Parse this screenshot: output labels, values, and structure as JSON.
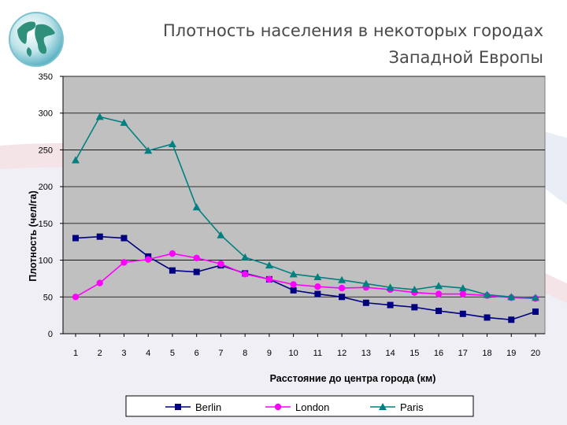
{
  "slide": {
    "title_line1": "Плотность населения в некоторых городах",
    "title_line2": "Западной Европы"
  },
  "chart_data": {
    "type": "line",
    "title": "",
    "xlabel": "Расстояние до центра города (км)",
    "ylabel": "Плотность (чел/га)",
    "x": [
      1,
      2,
      3,
      4,
      5,
      6,
      7,
      8,
      9,
      10,
      11,
      12,
      13,
      14,
      15,
      16,
      17,
      18,
      19,
      20
    ],
    "ylim": [
      0,
      350
    ],
    "yticks": [
      0,
      50,
      100,
      150,
      200,
      250,
      300,
      350
    ],
    "grid": true,
    "legend_position": "bottom",
    "plot_background": "#c0c0c0",
    "series": [
      {
        "name": "Berlin",
        "color": "#000080",
        "marker": "square",
        "values": [
          130,
          132,
          130,
          105,
          86,
          84,
          93,
          82,
          74,
          59,
          54,
          50,
          42,
          39,
          36,
          31,
          27,
          22,
          19,
          30
        ]
      },
      {
        "name": "London",
        "color": "#ff00ff",
        "marker": "circle",
        "values": [
          50,
          69,
          97,
          101,
          109,
          103,
          95,
          81,
          74,
          67,
          64,
          62,
          63,
          60,
          56,
          54,
          54,
          52,
          49,
          48
        ]
      },
      {
        "name": "Paris",
        "color": "#008080",
        "marker": "triangle",
        "values": [
          236,
          295,
          287,
          249,
          258,
          172,
          134,
          104,
          93,
          81,
          77,
          73,
          68,
          63,
          60,
          65,
          62,
          53,
          50,
          49
        ]
      }
    ]
  }
}
